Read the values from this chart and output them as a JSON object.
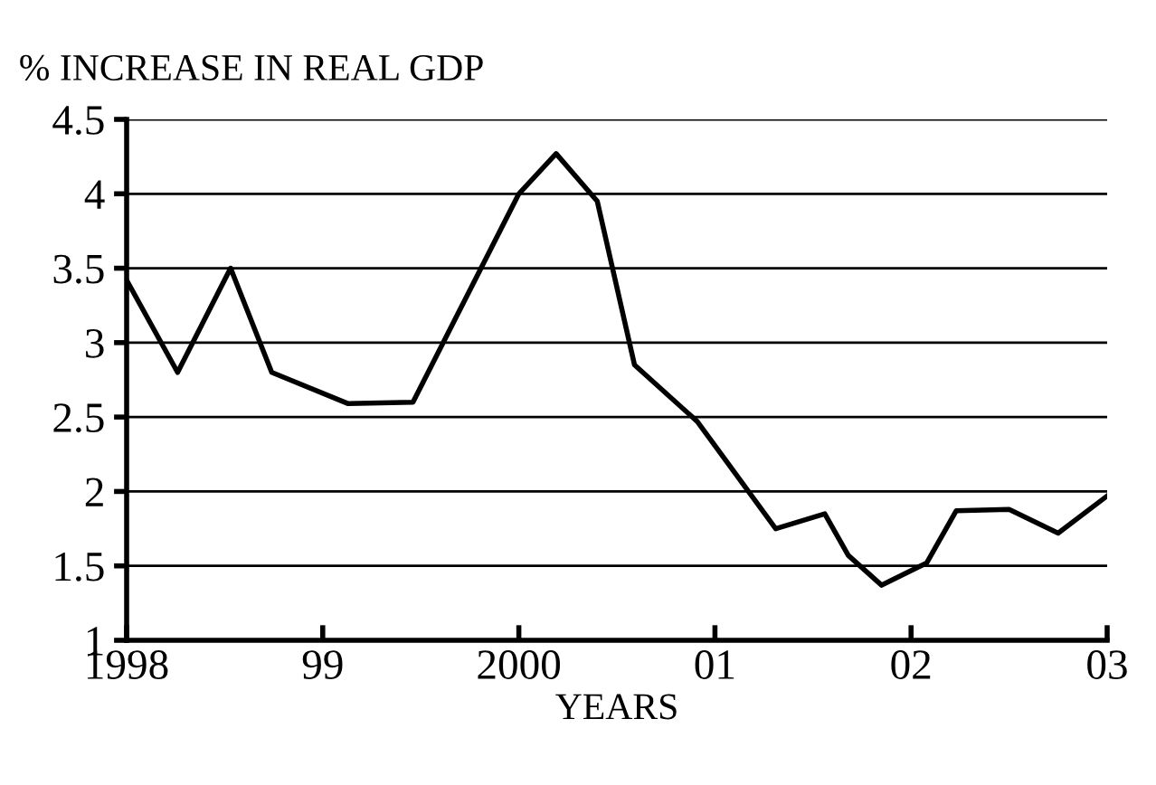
{
  "chart_data": {
    "type": "line",
    "title": "% INCREASE IN REAL GDP",
    "xlabel": "YEARS",
    "x": [
      1998.0,
      1998.26,
      1998.53,
      1998.74,
      1999.13,
      1999.46,
      2000.0,
      2000.19,
      2000.4,
      2000.59,
      2000.91,
      2001.31,
      2001.56,
      2001.68,
      2001.85,
      2002.08,
      2002.23,
      2002.5,
      2002.75,
      2003.0
    ],
    "series": [
      {
        "color": "#000000",
        "values": [
          3.42,
          2.8,
          3.5,
          2.8,
          2.59,
          2.6,
          4.0,
          4.27,
          3.95,
          2.85,
          2.47,
          1.75,
          1.85,
          1.57,
          1.37,
          1.52,
          1.87,
          1.88,
          1.72,
          1.97
        ]
      }
    ],
    "xlim": [
      1998,
      2003
    ],
    "xticks": [
      1998,
      {
        "value": 1999,
        "label": "99"
      },
      2000,
      {
        "value": 2001,
        "label": "01"
      },
      {
        "value": 2002,
        "label": "02"
      },
      {
        "value": 2003,
        "label": "03"
      }
    ],
    "ylim": [
      1,
      4.5
    ],
    "yticks": [
      1,
      1.5,
      2,
      2.5,
      3,
      3.5,
      4,
      4.5
    ],
    "grid": "y",
    "marker": "none",
    "line_style": "solid",
    "legend": false
  }
}
